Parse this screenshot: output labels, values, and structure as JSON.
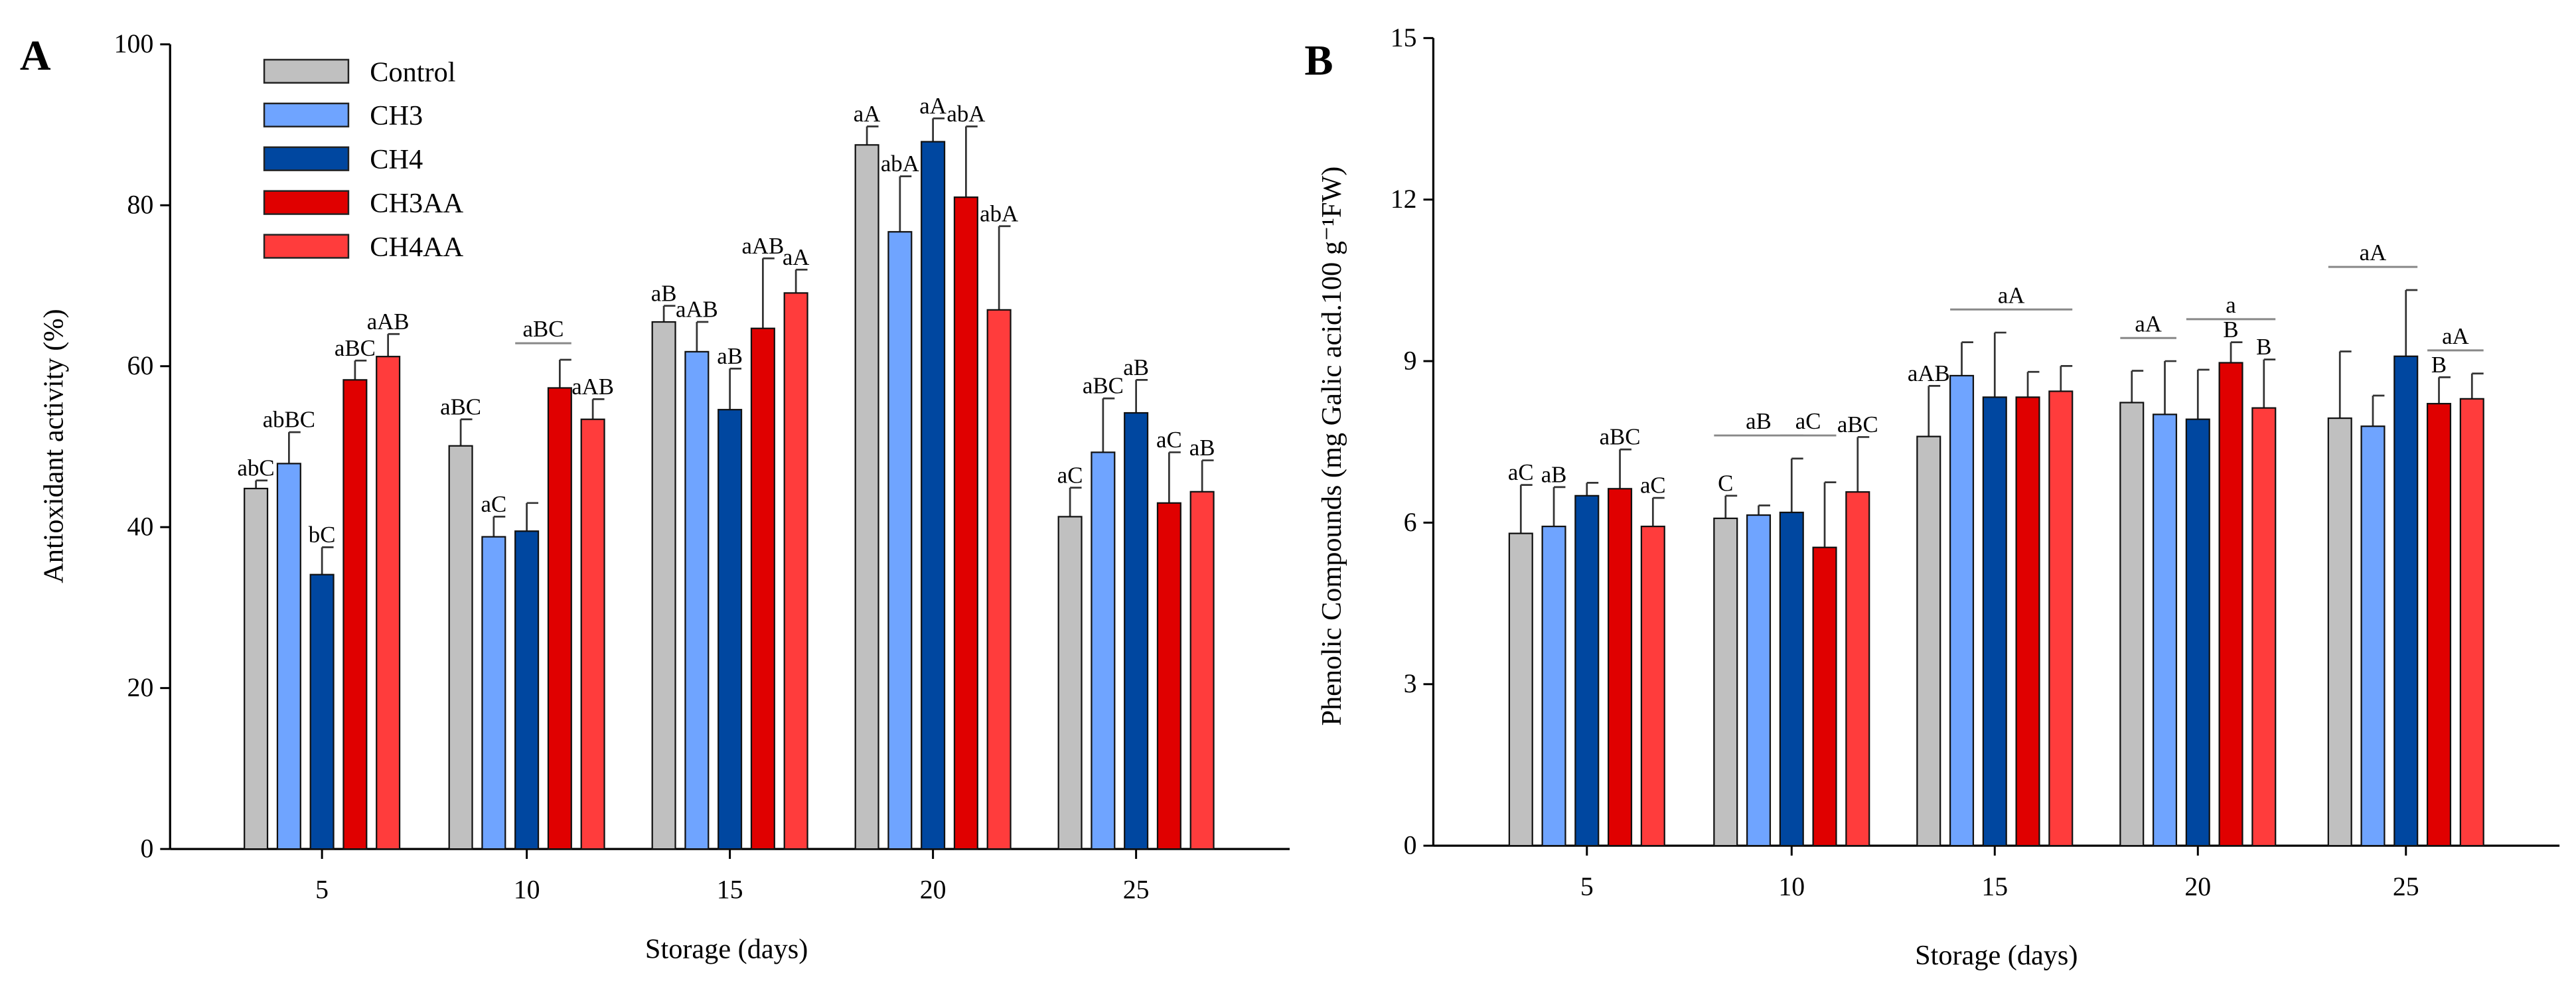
{
  "legend": [
    "Control",
    "CH3",
    "CH4",
    "CH3AA",
    "CH4AA"
  ],
  "colors": [
    "#c0c0c0",
    "#6fa4ff",
    "#0047a0",
    "#e00000",
    "#ff3c3c"
  ],
  "chart_data": [
    {
      "type": "bar",
      "panel": "A",
      "xlabel": "Storage (days)",
      "ylabel": "Antioxidant activity (%)",
      "ylim": [
        0,
        100
      ],
      "yticks": [
        0,
        20,
        40,
        60,
        80,
        100
      ],
      "categories": [
        "5",
        "10",
        "15",
        "20",
        "25"
      ],
      "legend_position": "top-left",
      "series": [
        {
          "name": "Control",
          "values": [
            44.8,
            50.1,
            65.5,
            87.5,
            41.3
          ],
          "errors": [
            1.0,
            3.3,
            2.0,
            2.3,
            3.6
          ],
          "labels": [
            "abC",
            "aBC",
            "aB",
            "aA",
            "aC"
          ]
        },
        {
          "name": "CH3",
          "values": [
            47.9,
            38.8,
            61.8,
            76.7,
            49.3
          ],
          "errors": [
            3.9,
            2.5,
            3.7,
            6.9,
            6.7
          ],
          "labels": [
            "abBC",
            "aC",
            "aAB",
            "abA",
            "aBC"
          ]
        },
        {
          "name": "CH4",
          "values": [
            34.1,
            39.5,
            54.6,
            87.9,
            54.2
          ],
          "errors": [
            3.4,
            3.5,
            5.1,
            2.9,
            4.1
          ],
          "labels": [
            "bC",
            "",
            "aB",
            "aA",
            "aB"
          ]
        },
        {
          "name": "CH3AA",
          "values": [
            58.3,
            57.3,
            64.7,
            81.0,
            43.0
          ],
          "errors": [
            2.4,
            3.5,
            8.7,
            8.8,
            6.3
          ],
          "labels": [
            "aBC",
            "",
            "aAB",
            "abA",
            "aC"
          ]
        },
        {
          "name": "CH4AA",
          "values": [
            61.2,
            53.4,
            69.1,
            67.0,
            44.4
          ],
          "errors": [
            2.8,
            2.5,
            2.9,
            10.4,
            3.9
          ],
          "labels": [
            "aAB",
            "aAB",
            "aA",
            "abA",
            "aB"
          ]
        }
      ],
      "group_labels": [
        {
          "category": "10",
          "from": "CH4",
          "to": "CH3AA",
          "text": "aBC"
        }
      ]
    },
    {
      "type": "bar",
      "panel": "B",
      "xlabel": "Storage (days)",
      "ylabel": "Phenolic Compounds (mg Galic acid.100 g⁻¹FW)",
      "ylim": [
        0,
        15
      ],
      "yticks": [
        0,
        3,
        6,
        9,
        12,
        15
      ],
      "categories": [
        "5",
        "10",
        "15",
        "20",
        "25"
      ],
      "series": [
        {
          "name": "Control",
          "values": [
            5.8,
            6.08,
            7.6,
            8.23,
            7.94
          ],
          "errors": [
            0.9,
            0.42,
            0.94,
            0.59,
            1.24
          ],
          "labels": [
            "aC",
            "C",
            "aAB",
            "",
            ""
          ]
        },
        {
          "name": "CH3",
          "values": [
            5.93,
            6.14,
            8.73,
            8.01,
            7.79
          ],
          "errors": [
            0.73,
            0.18,
            0.62,
            0.99,
            0.57
          ],
          "labels": [
            "aB",
            "",
            "",
            "",
            ""
          ]
        },
        {
          "name": "CH4",
          "values": [
            6.5,
            6.19,
            8.33,
            7.92,
            9.09
          ],
          "errors": [
            0.24,
            1.0,
            1.2,
            0.92,
            1.23
          ],
          "labels": [
            "",
            "",
            "",
            "",
            ""
          ]
        },
        {
          "name": "CH3AA",
          "values": [
            6.63,
            5.54,
            8.33,
            8.97,
            8.21
          ],
          "errors": [
            0.73,
            1.21,
            0.47,
            0.38,
            0.49
          ],
          "labels": [
            "aBC",
            "",
            "",
            "B",
            "B"
          ]
        },
        {
          "name": "CH4AA",
          "values": [
            5.93,
            6.57,
            8.44,
            8.13,
            8.3
          ],
          "errors": [
            0.53,
            1.02,
            0.47,
            0.9,
            0.47
          ],
          "labels": [
            "aC",
            "aBC",
            "",
            "B",
            ""
          ]
        }
      ],
      "group_labels": [
        {
          "category": "10",
          "from": "Control",
          "to": "CH4",
          "text": "aB"
        },
        {
          "category": "10",
          "from": "CH4",
          "to": "CH3AA",
          "text": "aC"
        },
        {
          "category": "15",
          "from": "CH3",
          "to": "CH4AA",
          "text": "aA"
        },
        {
          "category": "20",
          "from": "Control",
          "to": "CH3",
          "text": "aA"
        },
        {
          "category": "20",
          "from": "CH4",
          "to": "CH4AA",
          "text": "a"
        },
        {
          "category": "25",
          "from": "Control",
          "to": "CH4",
          "text": "aA"
        },
        {
          "category": "25",
          "from": "CH3AA",
          "to": "CH4AA",
          "text": "aA"
        }
      ]
    }
  ]
}
